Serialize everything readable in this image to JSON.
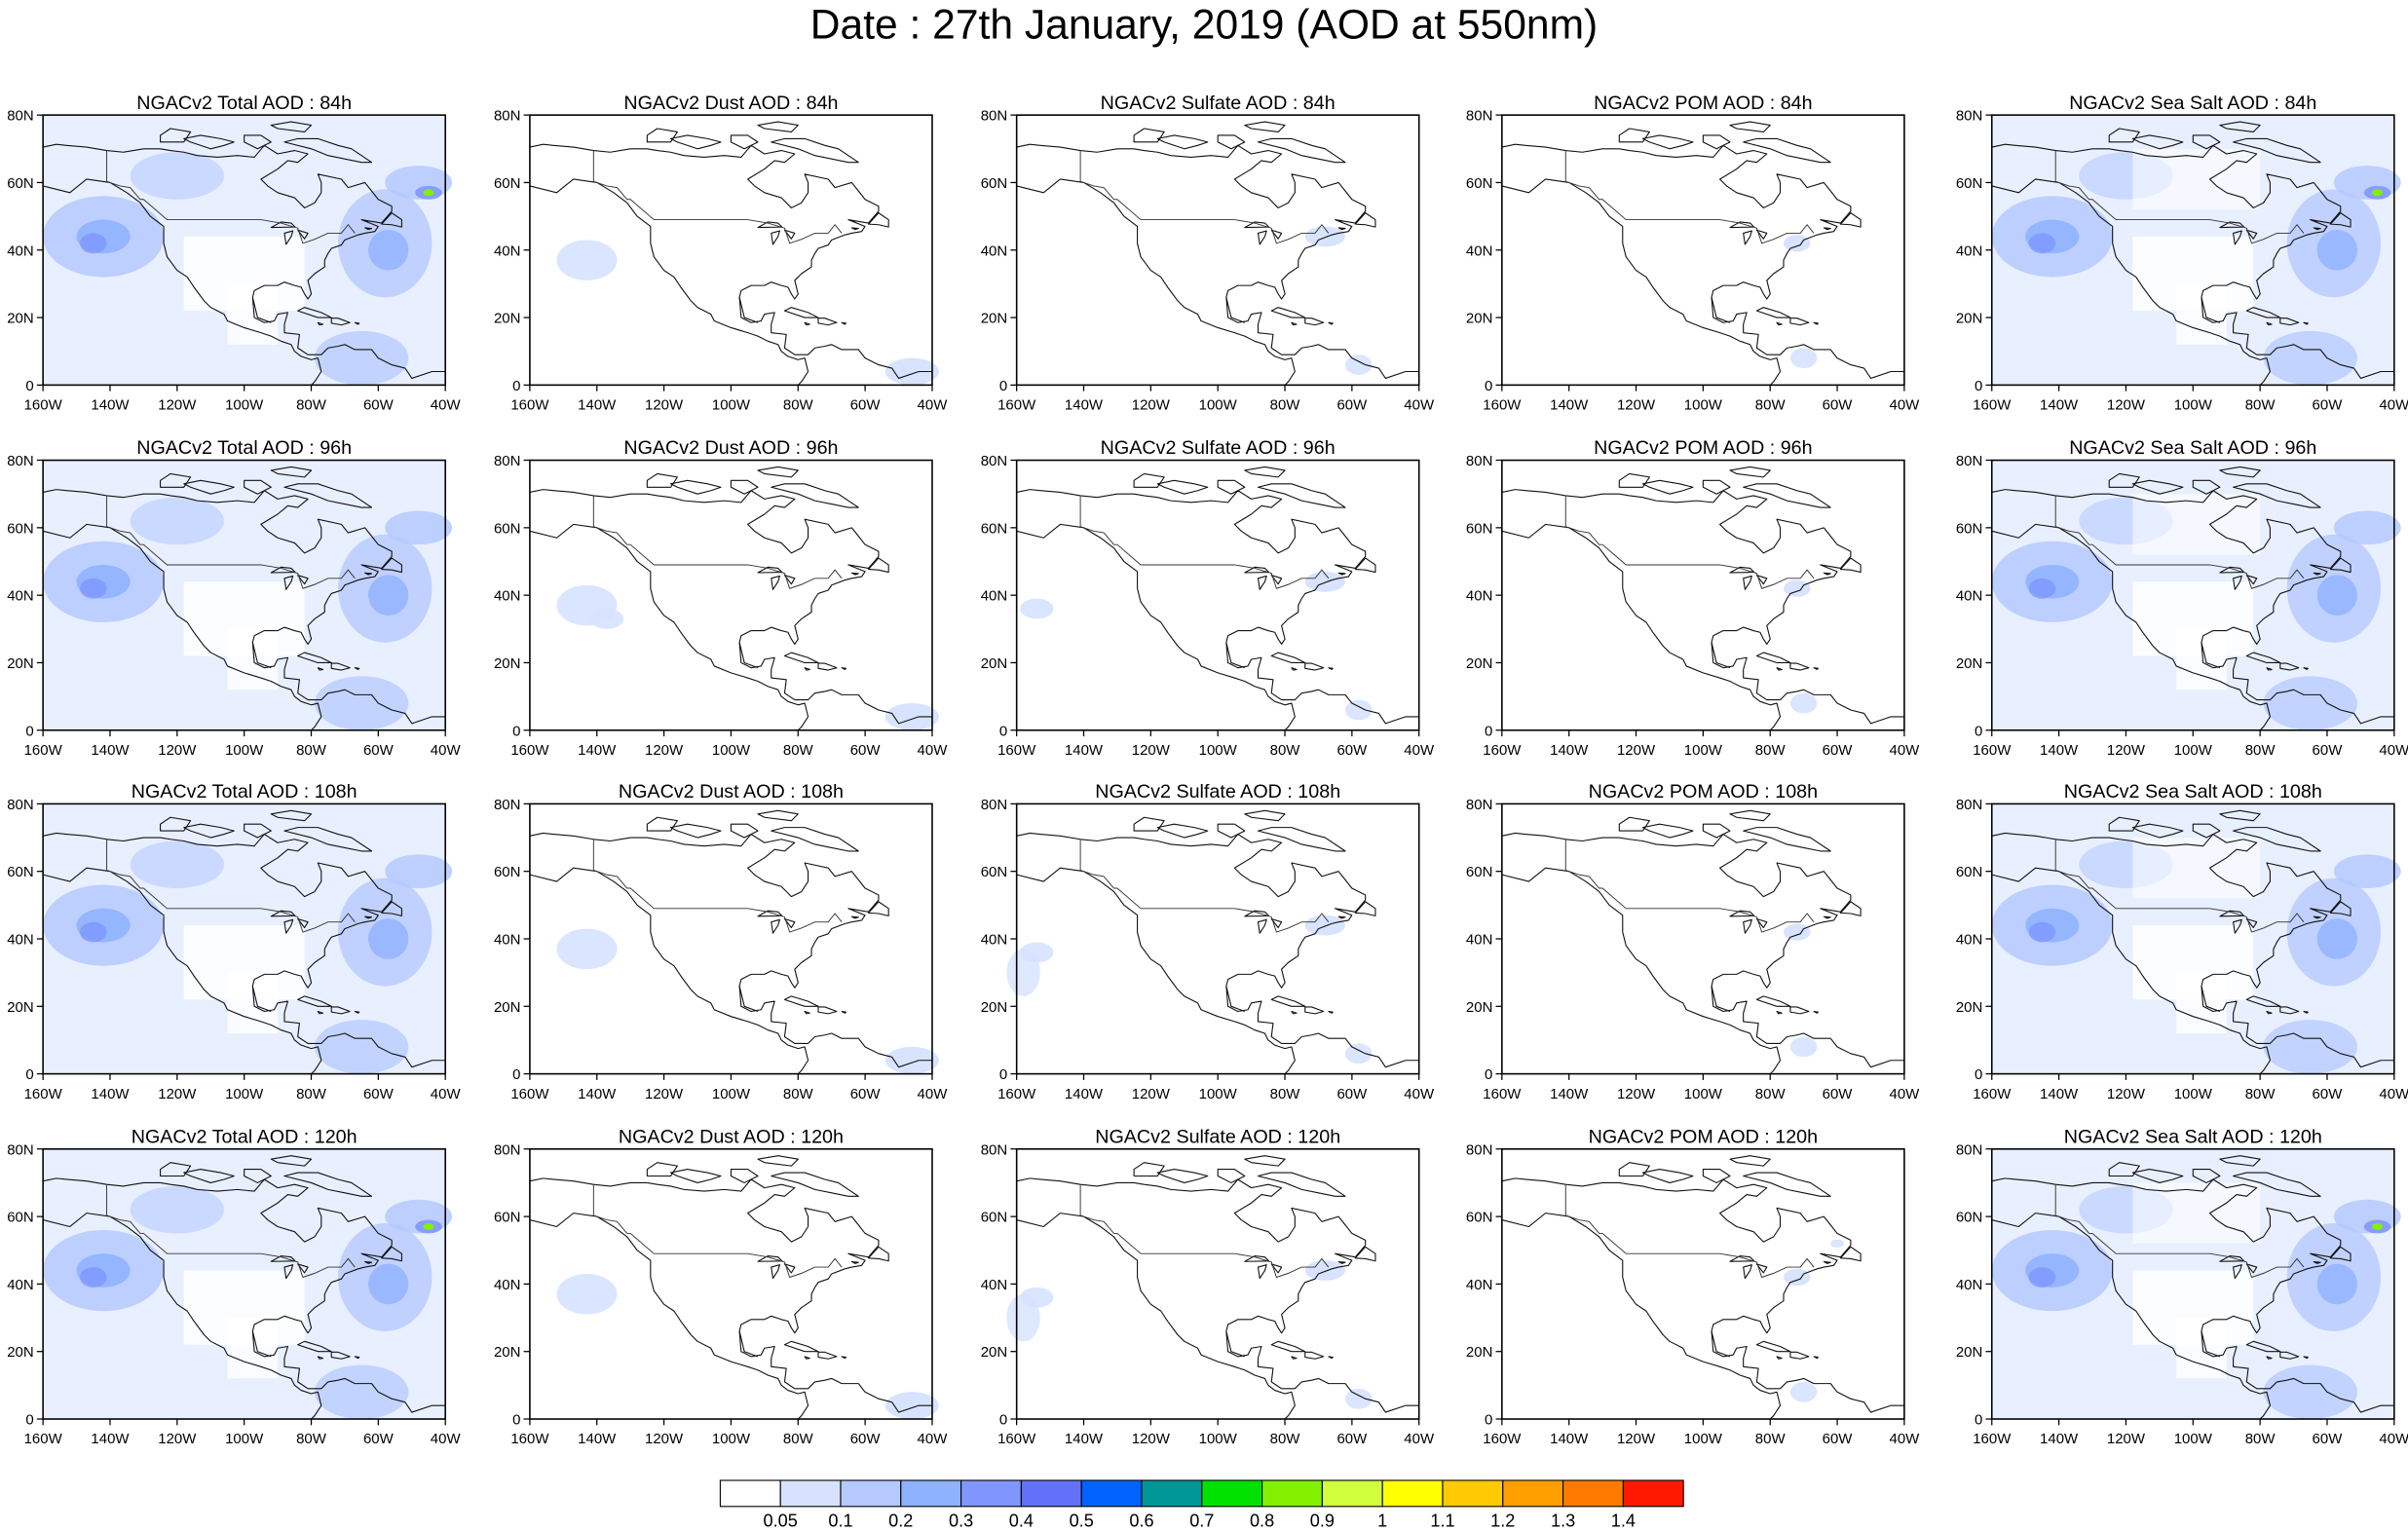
{
  "title": "Date : 27th January, 2019 (AOD at 550nm)",
  "lat_labels": [
    "80N",
    "60N",
    "40N",
    "20N",
    "0"
  ],
  "lon_labels": [
    "160W",
    "140W",
    "120W",
    "100W",
    "80W",
    "60W",
    "40W"
  ],
  "rows": [
    [
      "NGACv2 Total AOD : 84h",
      "NGACv2 Dust AOD : 84h",
      "NGACv2 Sulfate AOD : 84h",
      "NGACv2 POM AOD : 84h",
      "NGACv2 Sea Salt AOD : 84h"
    ],
    [
      "NGACv2 Total AOD : 96h",
      "NGACv2 Dust AOD : 96h",
      "NGACv2 Sulfate AOD : 96h",
      "NGACv2 POM AOD : 96h",
      "NGACv2 Sea Salt AOD : 96h"
    ],
    [
      "NGACv2 Total AOD : 108h",
      "NGACv2 Dust AOD : 108h",
      "NGACv2 Sulfate AOD : 108h",
      "NGACv2 POM AOD : 108h",
      "NGACv2 Sea Salt AOD : 108h"
    ],
    [
      "NGACv2 Total AOD : 120h",
      "NGACv2 Dust AOD : 120h",
      "NGACv2 Sulfate AOD : 120h",
      "NGACv2 POM AOD : 120h",
      "NGACv2 Sea Salt  AOD : 120h"
    ]
  ],
  "colorbar": {
    "labels": [
      "0.05",
      "0.1",
      "0.2",
      "0.3",
      "0.4",
      "0.5",
      "0.6",
      "0.7",
      "0.8",
      "0.9",
      "1",
      "1.1",
      "1.2",
      "1.3",
      "1.4"
    ],
    "colors": [
      "#ffffff",
      "#d6e2ff",
      "#b5c9ff",
      "#8eb2ff",
      "#7f96ff",
      "#6370f8",
      "#0062ff",
      "#009696",
      "#00e100",
      "#83f000",
      "#d2ff3c",
      "#ffff00",
      "#ffca00",
      "#ff9f00",
      "#ff7b00",
      "#ff1900"
    ]
  }
}
